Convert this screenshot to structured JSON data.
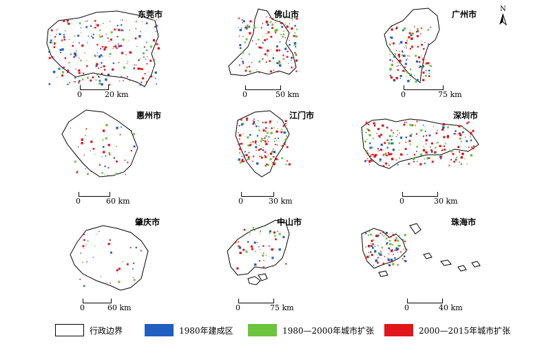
{
  "figure": {
    "north_label": "N",
    "colors": {
      "boundary": "#000000",
      "built_1980": "#1f5fbf",
      "expansion_1980_2000": "#6cc33c",
      "expansion_2000_2015": "#e0161b"
    },
    "legend": [
      {
        "label": "行政边界",
        "swatch": "boundary"
      },
      {
        "label": "1980年建成区",
        "swatch": "built_1980"
      },
      {
        "label": "1980—2000年城市扩张",
        "swatch": "expansion_1980_2000"
      },
      {
        "label": "2000—2015年城市扩张",
        "swatch": "expansion_2000_2015"
      }
    ],
    "panels": [
      {
        "name": "东莞市",
        "scale_zero": "0",
        "scale_label": "20 km"
      },
      {
        "name": "佛山市",
        "scale_zero": "0",
        "scale_label": "50 km"
      },
      {
        "name": "广州市",
        "scale_zero": "0",
        "scale_label": "75 km"
      },
      {
        "name": "惠州市",
        "scale_zero": "0",
        "scale_label": "60 km"
      },
      {
        "name": "江门市",
        "scale_zero": "0",
        "scale_label": "30 km"
      },
      {
        "name": "深圳市",
        "scale_zero": "0",
        "scale_label": "30 km"
      },
      {
        "name": "肇庆市",
        "scale_zero": "0",
        "scale_label": "60 km"
      },
      {
        "name": "中山市",
        "scale_zero": "0",
        "scale_label": "75 km"
      },
      {
        "name": "珠海市",
        "scale_zero": "0",
        "scale_label": "40 km"
      }
    ]
  }
}
